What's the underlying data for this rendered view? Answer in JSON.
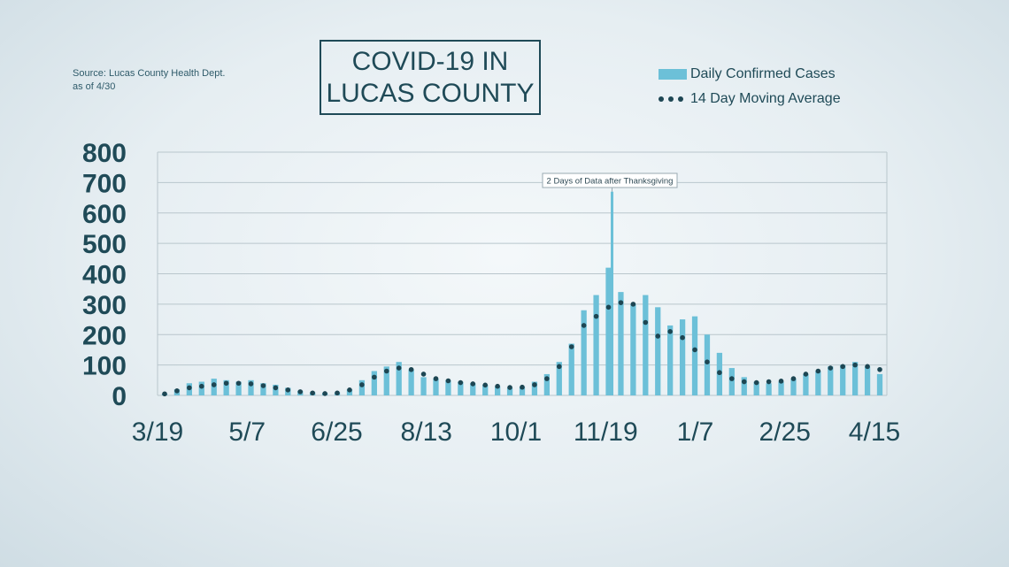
{
  "source": {
    "line1": "Source:  Lucas County Health Dept.",
    "line2": "as of 4/30"
  },
  "title": {
    "line1": "COVID-19 IN",
    "line2": "LUCAS COUNTY"
  },
  "legend": {
    "bars": "Daily Confirmed Cases",
    "dots": "14 Day Moving Average"
  },
  "colors": {
    "bar": "#6cc0d8",
    "dots": "#1d4653",
    "text": "#1f4a57"
  },
  "chart_data": {
    "type": "bar",
    "title": "COVID-19 IN LUCAS COUNTY",
    "xlabel": "",
    "ylabel": "",
    "ylim": [
      0,
      800
    ],
    "y_ticks": [
      "0",
      "100",
      "200",
      "300",
      "400",
      "500",
      "600",
      "700",
      "800"
    ],
    "x_ticks": [
      "3/19",
      "5/7",
      "6/25",
      "8/13",
      "10/1",
      "11/19",
      "1/7",
      "2/25",
      "4/15"
    ],
    "grid": true,
    "legend_position": "top-right",
    "annotation": {
      "text": "2 Days of Data after Thanksgiving",
      "date": "11/28",
      "value": 670
    },
    "x": [
      "3/19",
      "3/26",
      "4/2",
      "4/9",
      "4/16",
      "4/23",
      "4/30",
      "5/7",
      "5/14",
      "5/21",
      "5/28",
      "6/4",
      "6/11",
      "6/18",
      "6/25",
      "7/2",
      "7/9",
      "7/16",
      "7/23",
      "7/30",
      "8/6",
      "8/13",
      "8/20",
      "8/27",
      "9/3",
      "9/10",
      "9/17",
      "9/24",
      "10/1",
      "10/8",
      "10/15",
      "10/22",
      "10/29",
      "11/5",
      "11/12",
      "11/19",
      "11/26",
      "12/3",
      "12/10",
      "12/17",
      "12/24",
      "12/31",
      "1/7",
      "1/14",
      "1/21",
      "1/28",
      "2/4",
      "2/11",
      "2/18",
      "2/25",
      "3/4",
      "3/11",
      "3/18",
      "3/25",
      "4/1",
      "4/8",
      "4/15",
      "4/22",
      "4/29"
    ],
    "series": [
      {
        "name": "Daily Confirmed Cases",
        "type": "bar",
        "values": [
          5,
          20,
          40,
          45,
          55,
          50,
          45,
          50,
          40,
          35,
          25,
          15,
          10,
          8,
          10,
          20,
          50,
          80,
          95,
          110,
          85,
          60,
          55,
          50,
          45,
          40,
          35,
          30,
          25,
          28,
          45,
          70,
          110,
          170,
          280,
          330,
          420,
          340,
          300,
          330,
          290,
          230,
          250,
          260,
          200,
          140,
          90,
          60,
          45,
          40,
          45,
          55,
          70,
          80,
          95,
          100,
          110,
          95,
          70
        ]
      },
      {
        "name": "14 Day Moving Average",
        "type": "line",
        "values": [
          5,
          15,
          25,
          30,
          35,
          40,
          40,
          38,
          32,
          25,
          18,
          12,
          8,
          6,
          8,
          18,
          35,
          60,
          80,
          90,
          85,
          70,
          55,
          48,
          42,
          38,
          34,
          30,
          26,
          27,
          35,
          55,
          95,
          160,
          230,
          260,
          290,
          305,
          300,
          240,
          195,
          210,
          190,
          150,
          110,
          75,
          55,
          45,
          42,
          45,
          47,
          55,
          70,
          80,
          90,
          95,
          100,
          95,
          85
        ]
      }
    ]
  }
}
